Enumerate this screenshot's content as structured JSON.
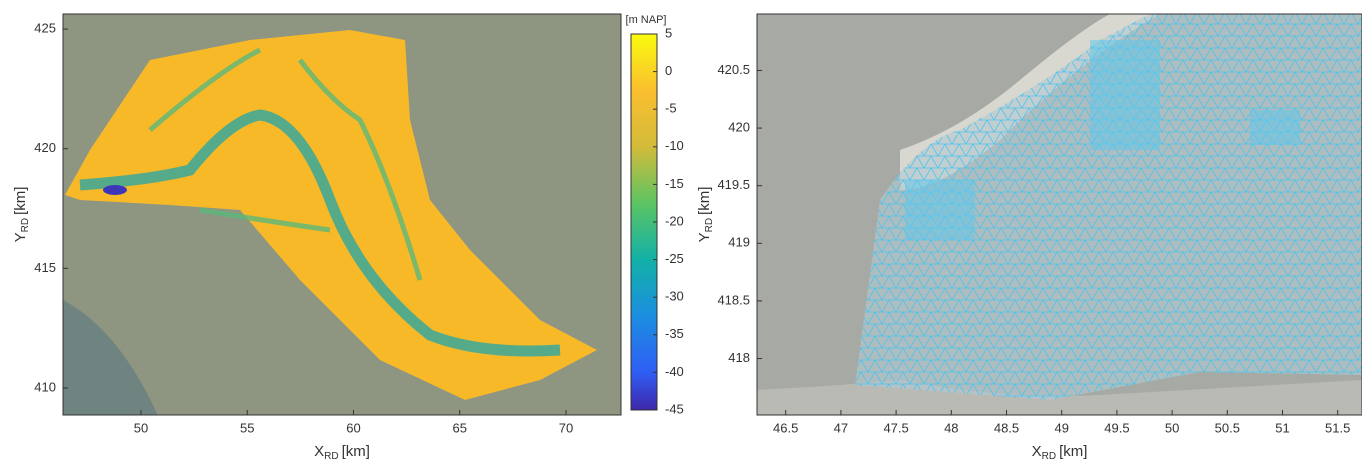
{
  "chart_data": [
    {
      "type": "map",
      "x_label": {
        "text": "X",
        "sub": "RD",
        "unit": "[km]"
      },
      "y_label": {
        "text": "Y",
        "sub": "RD",
        "unit": "[km]"
      },
      "xlim": [
        46.33,
        72.59
      ],
      "xticks": [
        50,
        55,
        60,
        65,
        70
      ],
      "ylim": [
        408.87,
        425.63
      ],
      "yticks": [
        410,
        415,
        420,
        425
      ],
      "colorbar": {
        "label": "[m NAP]",
        "lim": [
          -45,
          5
        ],
        "ticks": [
          5,
          0,
          -5,
          -10,
          -15,
          -20,
          -25,
          -30,
          -35,
          -40,
          -45
        ]
      }
    },
    {
      "type": "map",
      "x_label": {
        "text": "X",
        "sub": "RD",
        "unit": "[km]"
      },
      "y_label": {
        "text": "Y",
        "sub": "RD",
        "unit": "[km]"
      },
      "xlim": [
        46.24,
        51.72
      ],
      "xticks": [
        46.5,
        47,
        47.5,
        48,
        48.5,
        49,
        49.5,
        50,
        50.5,
        51,
        51.5
      ],
      "ylim": [
        417.51,
        420.99
      ],
      "yticks": [
        418,
        418.5,
        419,
        419.5,
        420,
        420.5
      ]
    }
  ]
}
